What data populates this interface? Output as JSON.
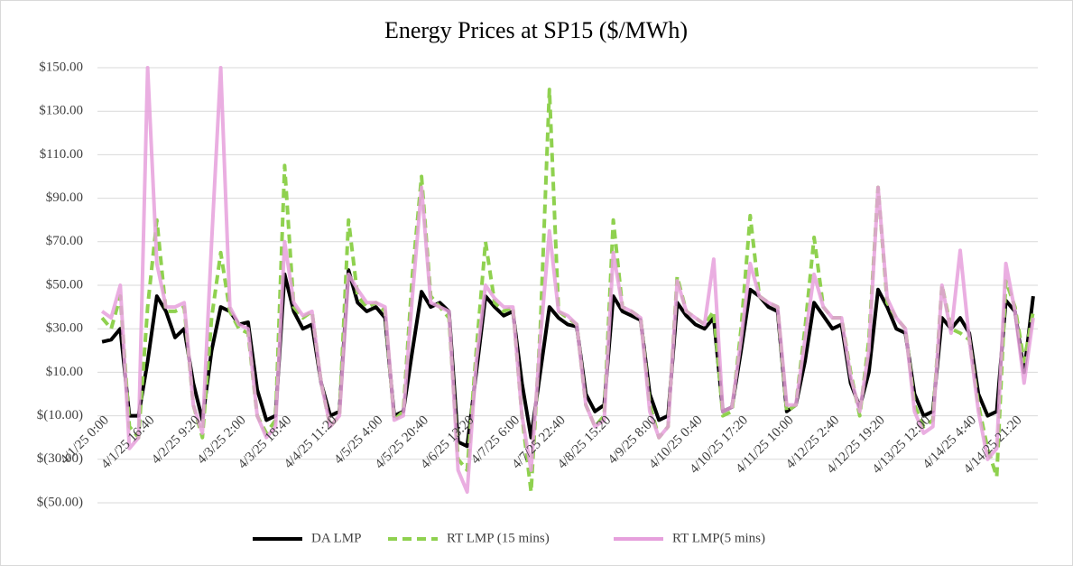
{
  "chart_data": {
    "type": "line",
    "title": "Energy Prices at SP15 ($/MWh)",
    "categories": [
      "4/1/25 0:00",
      null,
      null,
      null,
      null,
      "4/1/25 16:40",
      null,
      null,
      null,
      null,
      "4/2/25 9:20",
      null,
      null,
      null,
      null,
      "4/3/25 2:00",
      null,
      null,
      null,
      null,
      "4/3/25 18:40",
      null,
      null,
      null,
      null,
      "4/4/25 11:20",
      null,
      null,
      null,
      null,
      "4/5/25 4:00",
      null,
      null,
      null,
      null,
      "4/5/25 20:40",
      null,
      null,
      null,
      null,
      "4/6/25 13:20",
      null,
      null,
      null,
      null,
      "4/7/25 6:00",
      null,
      null,
      null,
      null,
      "4/7/25 22:40",
      null,
      null,
      null,
      null,
      "4/8/25 15:20",
      null,
      null,
      null,
      null,
      "4/9/25 8:00",
      null,
      null,
      null,
      null,
      "4/10/25 0:40",
      null,
      null,
      null,
      null,
      "4/10/25 17:20",
      null,
      null,
      null,
      null,
      "4/11/25 10:00",
      null,
      null,
      null,
      null,
      "4/12/25 2:40",
      null,
      null,
      null,
      null,
      "4/12/25 19:20",
      null,
      null,
      null,
      null,
      "4/13/25 12:00",
      null,
      null,
      null,
      null,
      "4/14/25 4:40",
      null,
      null,
      null,
      null,
      "4/14/25 21:20",
      null,
      null
    ],
    "series": [
      {
        "name": "DA LMP",
        "color": "#000000",
        "line_style": "solid",
        "values": [
          24,
          25,
          30,
          -10,
          -10,
          15,
          45,
          38,
          26,
          30,
          5,
          -12,
          20,
          40,
          38,
          32,
          33,
          2,
          -12,
          -10,
          55,
          38,
          30,
          32,
          5,
          -10,
          -8,
          57,
          42,
          38,
          40,
          35,
          -10,
          -8,
          20,
          47,
          40,
          42,
          38,
          -22,
          -24,
          10,
          45,
          40,
          36,
          38,
          5,
          -20,
          10,
          40,
          35,
          32,
          31,
          0,
          -8,
          -5,
          45,
          38,
          36,
          34,
          0,
          -12,
          -10,
          42,
          36,
          32,
          30,
          35,
          -8,
          -6,
          20,
          48,
          45,
          40,
          38,
          -8,
          -5,
          15,
          42,
          36,
          30,
          32,
          5,
          -6,
          10,
          48,
          40,
          30,
          28,
          0,
          -10,
          -8,
          35,
          30,
          35,
          28,
          0,
          -10,
          -8,
          43,
          38,
          10,
          45
        ]
      },
      {
        "name": "RT LMP (15 mins)",
        "color": "#8fd14f",
        "line_style": "dashed",
        "values": [
          35,
          30,
          45,
          -15,
          -20,
          40,
          80,
          38,
          38,
          40,
          -5,
          -20,
          35,
          65,
          38,
          30,
          28,
          -10,
          -18,
          -12,
          105,
          40,
          35,
          38,
          5,
          -15,
          -10,
          80,
          45,
          40,
          42,
          38,
          -12,
          -8,
          55,
          100,
          45,
          40,
          35,
          -30,
          -35,
          20,
          70,
          42,
          38,
          40,
          -10,
          -45,
          30,
          140,
          38,
          35,
          32,
          -5,
          -15,
          -10,
          80,
          40,
          38,
          35,
          -5,
          -20,
          -15,
          54,
          38,
          35,
          32,
          38,
          -10,
          -8,
          30,
          82,
          45,
          42,
          40,
          -8,
          -5,
          30,
          72,
          40,
          35,
          35,
          10,
          -10,
          25,
          95,
          42,
          35,
          30,
          -5,
          -15,
          -12,
          50,
          30,
          28,
          25,
          -5,
          -25,
          -38,
          52,
          40,
          15,
          38
        ]
      },
      {
        "name": "RT LMP(5 mins)",
        "color": "#e6a0dc",
        "line_style": "solid",
        "values": [
          38,
          35,
          50,
          -25,
          -20,
          150,
          60,
          40,
          40,
          42,
          -5,
          -18,
          70,
          150,
          40,
          32,
          30,
          -10,
          -20,
          -15,
          70,
          42,
          36,
          38,
          5,
          -15,
          -10,
          55,
          48,
          42,
          42,
          40,
          -12,
          -10,
          45,
          95,
          42,
          40,
          38,
          -35,
          -45,
          15,
          50,
          44,
          40,
          40,
          -10,
          -35,
          25,
          75,
          38,
          36,
          32,
          -5,
          -15,
          -12,
          65,
          40,
          38,
          35,
          -8,
          -20,
          -15,
          52,
          38,
          35,
          32,
          62,
          -8,
          -6,
          25,
          60,
          45,
          42,
          40,
          -5,
          -5,
          25,
          55,
          40,
          35,
          35,
          8,
          -8,
          20,
          95,
          44,
          35,
          30,
          -8,
          -18,
          -15,
          50,
          28,
          66,
          25,
          -8,
          -30,
          -25,
          60,
          38,
          5,
          35
        ]
      }
    ],
    "ylim": [
      -50,
      150
    ],
    "yticks": [
      {
        "value": -50,
        "label": "$(50.00)"
      },
      {
        "value": -30,
        "label": "$(30.00)"
      },
      {
        "value": -10,
        "label": "$(10.00)"
      },
      {
        "value": 10,
        "label": "$10.00"
      },
      {
        "value": 30,
        "label": "$30.00"
      },
      {
        "value": 50,
        "label": "$50.00"
      },
      {
        "value": 70,
        "label": "$70.00"
      },
      {
        "value": 90,
        "label": "$90.00"
      },
      {
        "value": 110,
        "label": "$110.00"
      },
      {
        "value": 130,
        "label": "$130.00"
      },
      {
        "value": 150,
        "label": "$150.00"
      }
    ],
    "grid": true,
    "legend": "bottom"
  }
}
